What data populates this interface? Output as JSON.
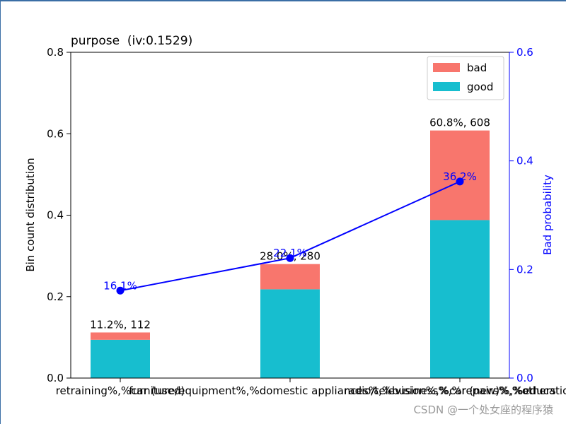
{
  "chart_data": {
    "type": "bar",
    "title": "purpose  (iv:0.1529)",
    "ylabel": "Bin count distribution",
    "y2label": "Bad probability",
    "ylim": [
      0,
      0.8
    ],
    "y2lim": [
      0,
      0.6
    ],
    "yticks": [
      "0.0",
      "0.2",
      "0.4",
      "0.6",
      "0.8"
    ],
    "y2ticks": [
      "0.0",
      "0.2",
      "0.4",
      "0.6"
    ],
    "stacked": true,
    "categories": [
      "retraining%,%car (used)",
      "furniture/equipment%,%domestic appliances%,%business%,%repairs%,%others",
      "radio/television%,%car (new)%,%education"
    ],
    "series": [
      {
        "name": "good",
        "values": [
          0.094,
          0.218,
          0.388
        ],
        "color": "#17becf"
      },
      {
        "name": "bad",
        "values": [
          0.018,
          0.062,
          0.22
        ],
        "color": "#f8766d"
      }
    ],
    "bar_labels": [
      "11.2%, 112",
      "28.0%, 280",
      "60.8%, 608"
    ],
    "line": {
      "name": "bad probability",
      "values": [
        0.161,
        0.221,
        0.362
      ],
      "labels": [
        "16.1%",
        "22.1%",
        "36.2%"
      ],
      "color": "#0000ff"
    },
    "legend": {
      "placement": "top-right",
      "entries": [
        "bad",
        "good"
      ]
    },
    "grid": false
  },
  "watermark": "CSDN @一个处女座的程序猿"
}
